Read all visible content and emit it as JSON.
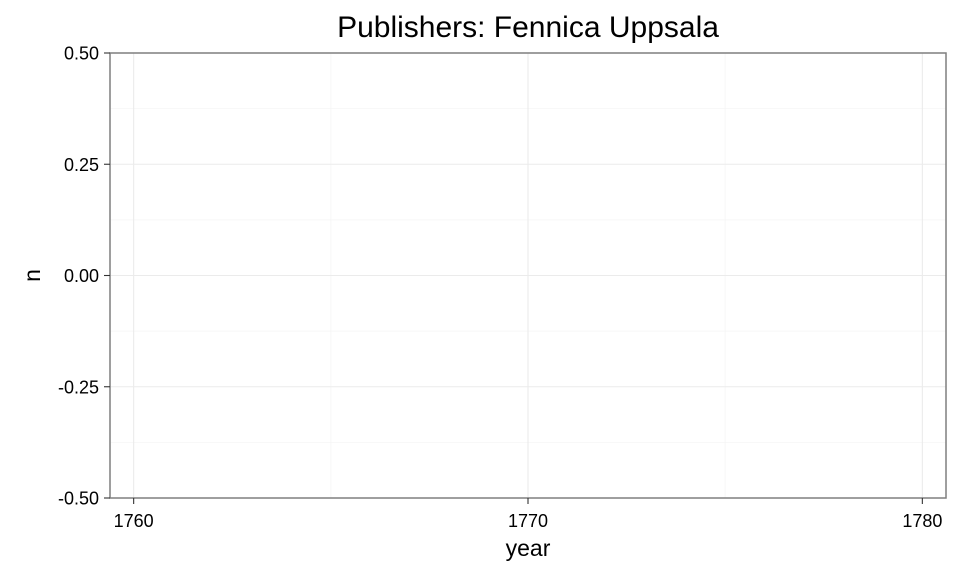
{
  "chart_data": {
    "type": "bar",
    "title": "Publishers: Fennica Uppsala",
    "xlabel": "year",
    "ylabel": "n",
    "xlim": [
      1759.4,
      1780.6
    ],
    "ylim": [
      -0.5,
      0.5
    ],
    "x_ticks": [
      1760,
      1770,
      1780
    ],
    "y_ticks": [
      -0.5,
      -0.25,
      0,
      0.25,
      0.5
    ],
    "x_tick_labels": [
      "1760",
      "1770",
      "1780"
    ],
    "y_tick_labels": [
      "-0.50",
      "-0.25",
      "0.00",
      "0.25",
      "0.50"
    ],
    "grid": true,
    "x": [
      1760,
      1761,
      1762,
      1763,
      1764,
      1765,
      1766,
      1767,
      1768,
      1769,
      1770,
      1771,
      1772,
      1773,
      1774,
      1775,
      1776,
      1777,
      1778,
      1779,
      1780
    ],
    "values": [
      0,
      0,
      0,
      0,
      0,
      0,
      0,
      0,
      0,
      0,
      0,
      0,
      0,
      0,
      0,
      0,
      0,
      0,
      0,
      0,
      0
    ],
    "bar_color": "#333333"
  }
}
